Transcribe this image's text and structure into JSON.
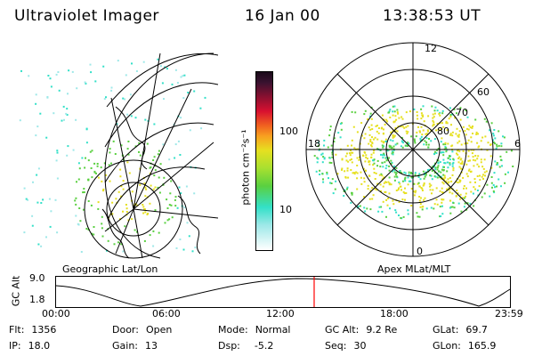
{
  "header": {
    "instrument": "Ultraviolet Imager",
    "date": "16 Jan 00",
    "time": "13:38:53 UT"
  },
  "panels": {
    "left_title": "Geographic Lat/Lon",
    "right_title": "Apex MLat/MLT"
  },
  "colorbar": {
    "unit_label": "photon cm⁻²s⁻¹",
    "ticks": [
      "100",
      "10"
    ]
  },
  "polar": {
    "mlt_labels": [
      "12",
      "18",
      "6",
      "0"
    ],
    "lat_labels": [
      "60",
      "70",
      "80"
    ]
  },
  "orbit": {
    "axis_label": "GC Alt",
    "y_ticks": [
      "9.0",
      "1.8"
    ],
    "x_ticks": [
      "00:00",
      "06:00",
      "12:00",
      "18:00",
      "23:59"
    ],
    "current_time_fraction": 0.5686
  },
  "info": {
    "flt_label": "Flt:",
    "flt": "1356",
    "ip_label": "IP:",
    "ip": "18.0",
    "door_label": "Door:",
    "door": "Open",
    "gain_label": "Gain:",
    "gain": "13",
    "mode_label": "Mode:",
    "mode": "Normal",
    "dsp_label": "Dsp:",
    "dsp": "-5.2",
    "gcalt_label": "GC Alt:",
    "gcalt": "9.2 Re",
    "seq_label": "Seq:",
    "seq": "30",
    "glat_label": "GLat:",
    "glat": "69.7",
    "glon_label": "GLon:",
    "glon": "165.9"
  },
  "colors": {
    "marker": "#ff0000",
    "cyan": "#33e0c8",
    "green": "#5ad040",
    "yellow": "#e6e020"
  }
}
